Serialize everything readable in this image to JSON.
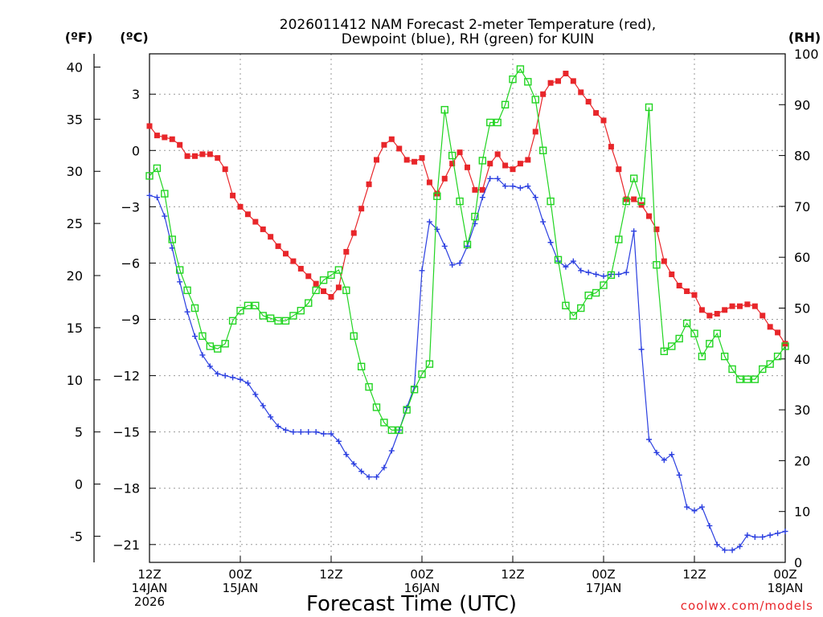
{
  "chart_data": {
    "type": "line",
    "title": [
      "2026011412 NAM Forecast 2-meter Temperature (red),",
      "Dewpoint (blue), RH (green) for KUIN"
    ],
    "xlabel": "Forecast Time (UTC)",
    "units": {
      "fahrenheit": "(ºF)",
      "celsius": "(ºC)",
      "rh": "(RH)"
    },
    "credit": "coolwx.com/models",
    "x_range_hours": [
      0,
      84
    ],
    "x_ticks": [
      {
        "hour": 0,
        "lines": [
          "12Z",
          "14JAN",
          "2026"
        ]
      },
      {
        "hour": 12,
        "lines": [
          "00Z",
          "15JAN"
        ]
      },
      {
        "hour": 24,
        "lines": [
          "12Z"
        ]
      },
      {
        "hour": 36,
        "lines": [
          "00Z",
          "16JAN"
        ]
      },
      {
        "hour": 48,
        "lines": [
          "12Z"
        ]
      },
      {
        "hour": 60,
        "lines": [
          "00Z",
          "17JAN"
        ]
      },
      {
        "hour": 72,
        "lines": [
          "12Z"
        ]
      },
      {
        "hour": 84,
        "lines": [
          "00Z",
          "18JAN"
        ]
      }
    ],
    "y_celsius": {
      "range": [
        -21.95,
        5.15
      ],
      "ticks": [
        3,
        0,
        -3,
        -6,
        -9,
        -12,
        -15,
        -18,
        -21
      ]
    },
    "y_fahrenheit": {
      "ticks": [
        40,
        35,
        30,
        25,
        20,
        15,
        10,
        5,
        0,
        -5
      ]
    },
    "y_rh": {
      "range": [
        0,
        100
      ],
      "ticks": [
        100,
        90,
        80,
        70,
        60,
        50,
        40,
        30,
        20,
        10,
        0
      ]
    },
    "series": [
      {
        "name": "2-meter Temperature",
        "color": "#e8262a",
        "marker": "filled-square",
        "axis": "celsius",
        "hours": [
          0,
          1,
          2,
          3,
          4,
          5,
          6,
          7,
          8,
          9,
          10,
          11,
          12,
          13,
          14,
          15,
          16,
          17,
          18,
          19,
          20,
          21,
          22,
          23,
          24,
          25,
          26,
          27,
          28,
          29,
          30,
          31,
          32,
          33,
          34,
          35,
          36,
          37,
          38,
          39,
          40,
          41,
          42,
          43,
          44,
          45,
          46,
          47,
          48,
          49,
          50,
          51,
          52,
          53,
          54,
          55,
          56,
          57,
          58,
          59,
          60,
          61,
          62,
          63,
          64,
          65,
          66,
          67,
          68,
          69,
          70,
          71,
          72,
          73,
          74,
          75,
          76,
          77,
          78,
          79,
          80,
          81,
          82,
          83,
          84
        ],
        "values": [
          1.3,
          0.8,
          0.7,
          0.6,
          0.3,
          -0.3,
          -0.3,
          -0.2,
          -0.2,
          -0.4,
          -1.0,
          -2.4,
          -3.0,
          -3.4,
          -3.8,
          -4.2,
          -4.6,
          -5.1,
          -5.5,
          -5.9,
          -6.3,
          -6.7,
          -7.1,
          -7.5,
          -7.8,
          -7.3,
          -5.4,
          -4.4,
          -3.1,
          -1.8,
          -0.5,
          0.3,
          0.6,
          0.1,
          -0.5,
          -0.6,
          -0.4,
          -1.7,
          -2.3,
          -1.5,
          -0.7,
          -0.1,
          -0.9,
          -2.1,
          -2.1,
          -0.7,
          -0.2,
          -0.8,
          -1.0,
          -0.7,
          -0.5,
          1.0,
          3.0,
          3.6,
          3.7,
          4.1,
          3.7,
          3.1,
          2.6,
          2.0,
          1.6,
          0.2,
          -1.0,
          -2.6,
          -2.6,
          -2.9,
          -3.5,
          -4.2,
          -5.9,
          -6.6,
          -7.2,
          -7.5,
          -7.7,
          -8.5,
          -8.8,
          -8.7,
          -8.5,
          -8.3,
          -8.3,
          -8.2,
          -8.3,
          -8.8,
          -9.4,
          -9.7,
          -10.3
        ]
      },
      {
        "name": "Dewpoint",
        "color": "#2b3fe0",
        "marker": "plus",
        "axis": "celsius",
        "hours": [
          0,
          1,
          2,
          3,
          4,
          5,
          6,
          7,
          8,
          9,
          10,
          11,
          12,
          13,
          14,
          15,
          16,
          17,
          18,
          19,
          20,
          21,
          22,
          23,
          24,
          25,
          26,
          27,
          28,
          29,
          30,
          31,
          32,
          33,
          34,
          35,
          36,
          37,
          38,
          39,
          40,
          41,
          42,
          43,
          44,
          45,
          46,
          47,
          48,
          49,
          50,
          51,
          52,
          53,
          54,
          55,
          56,
          57,
          58,
          59,
          60,
          61,
          62,
          63,
          64,
          65,
          66,
          67,
          68,
          69,
          70,
          71,
          72,
          73,
          74,
          75,
          76,
          77,
          78,
          79,
          80,
          81,
          82,
          83,
          84
        ],
        "values": [
          -2.4,
          -2.5,
          -3.5,
          -5.2,
          -7.0,
          -8.6,
          -9.9,
          -10.9,
          -11.5,
          -11.9,
          -12.0,
          -12.1,
          -12.2,
          -12.4,
          -13.0,
          -13.6,
          -14.2,
          -14.7,
          -14.9,
          -15.0,
          -15.0,
          -15.0,
          -15.0,
          -15.1,
          -15.1,
          -15.5,
          -16.2,
          -16.7,
          -17.1,
          -17.4,
          -17.4,
          -16.9,
          -16.0,
          -14.9,
          -13.7,
          -12.6,
          -6.4,
          -3.8,
          -4.2,
          -5.1,
          -6.1,
          -6.0,
          -5.1,
          -3.9,
          -2.5,
          -1.5,
          -1.5,
          -1.9,
          -1.9,
          -2.0,
          -1.9,
          -2.5,
          -3.8,
          -4.9,
          -5.9,
          -6.2,
          -5.9,
          -6.4,
          -6.5,
          -6.6,
          -6.7,
          -6.6,
          -6.6,
          -6.5,
          -4.3,
          -10.6,
          -15.4,
          -16.1,
          -16.5,
          -16.2,
          -17.3,
          -19.0,
          -19.2,
          -19.0,
          -20.0,
          -21.0,
          -21.3,
          -21.3,
          -21.1,
          -20.5,
          -20.6,
          -20.6,
          -20.5,
          -20.4,
          -20.3
        ]
      },
      {
        "name": "RH",
        "color": "#22d422",
        "marker": "open-square",
        "axis": "rh",
        "hours": [
          0,
          1,
          2,
          3,
          4,
          5,
          6,
          7,
          8,
          9,
          10,
          11,
          12,
          13,
          14,
          15,
          16,
          17,
          18,
          19,
          20,
          21,
          22,
          23,
          24,
          25,
          26,
          27,
          28,
          29,
          30,
          31,
          32,
          33,
          34,
          35,
          36,
          37,
          38,
          39,
          40,
          41,
          42,
          43,
          44,
          45,
          46,
          47,
          48,
          49,
          50,
          51,
          52,
          53,
          54,
          55,
          56,
          57,
          58,
          59,
          60,
          61,
          62,
          63,
          64,
          65,
          66,
          67,
          68,
          69,
          70,
          71,
          72,
          73,
          74,
          75,
          76,
          77,
          78,
          79,
          80,
          81,
          82,
          83,
          84
        ],
        "values": [
          76,
          77.5,
          72.5,
          63.5,
          57.5,
          53.5,
          50,
          44.5,
          42.5,
          42,
          43,
          47.5,
          49.5,
          50.5,
          50.5,
          48.5,
          48,
          47.5,
          47.5,
          48.5,
          49.5,
          51,
          53.5,
          55.5,
          56.5,
          57.5,
          53.5,
          44.5,
          38.5,
          34.5,
          30.5,
          27.5,
          26,
          26,
          30,
          34,
          37,
          39,
          72,
          89,
          80,
          71,
          62.5,
          68,
          79,
          86.5,
          86.5,
          90,
          95,
          97,
          94.5,
          91,
          81,
          71,
          59.5,
          50.5,
          48.5,
          50,
          52.5,
          53,
          54.5,
          56.5,
          63.5,
          71,
          75.5,
          71,
          89.5,
          58.5,
          41.5,
          42.5,
          44,
          47,
          45,
          40.5,
          43,
          45,
          40.5,
          38,
          36,
          36,
          36,
          38,
          39,
          40.5,
          42.5
        ]
      }
    ]
  }
}
